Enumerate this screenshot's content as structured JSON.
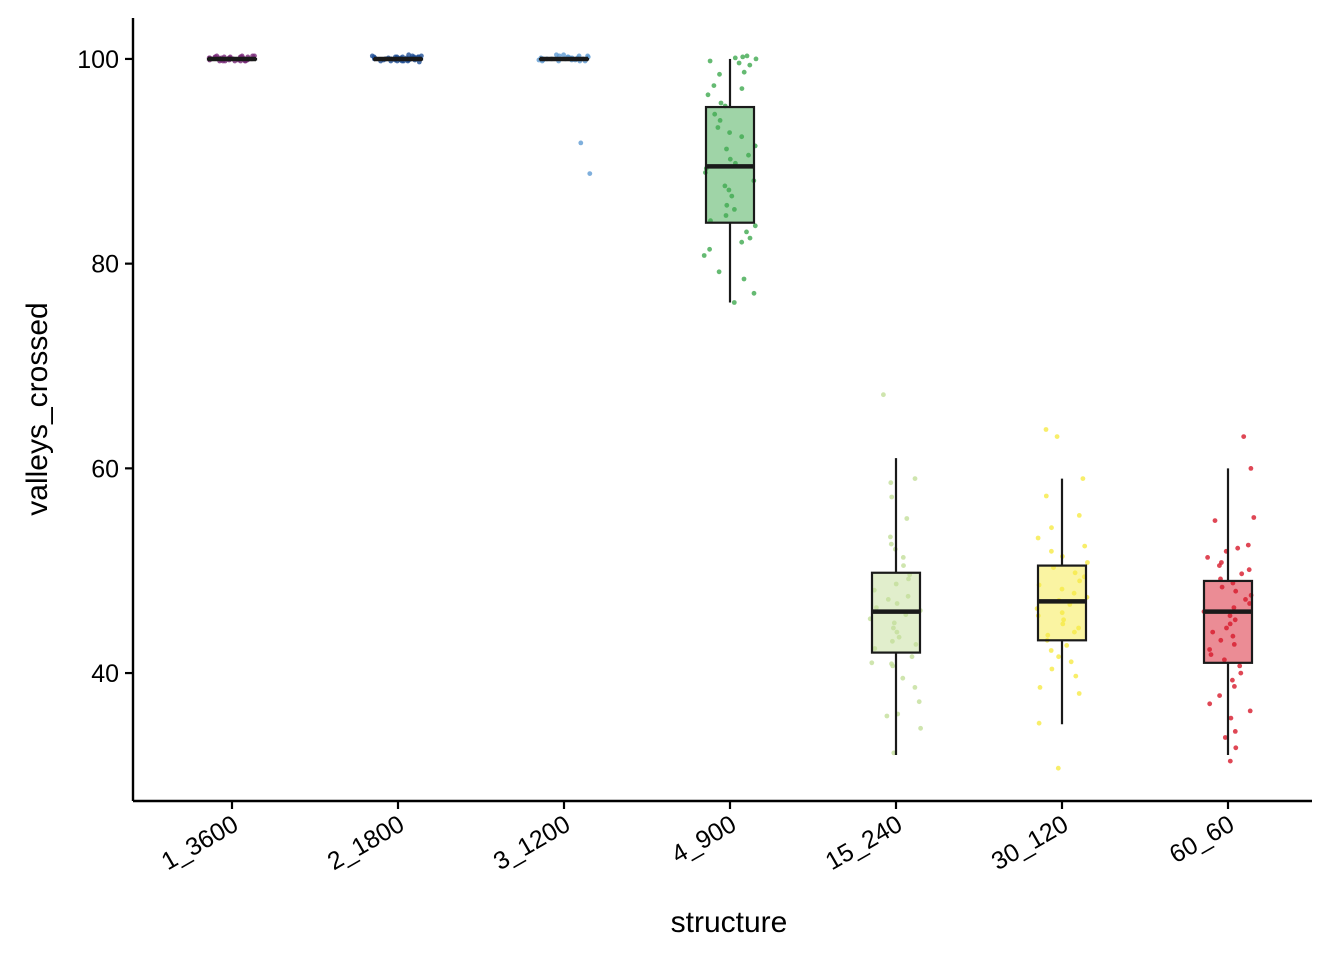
{
  "chart_data": {
    "type": "boxplot",
    "xlabel": "structure",
    "ylabel": "valleys_crossed",
    "ylim": [
      27.5,
      104
    ],
    "yticks": [
      40,
      60,
      80,
      100
    ],
    "categories": [
      "1_3600",
      "2_1800",
      "3_1200",
      "4_900",
      "15_240",
      "30_120",
      "60_60"
    ],
    "grid": false,
    "legend": "none",
    "boxes": [
      {
        "category": "1_3600",
        "color": "#7b2a7a",
        "min": 100,
        "q1": 100,
        "median": 100,
        "q3": 100,
        "max": 100,
        "outliers": []
      },
      {
        "category": "2_1800",
        "color": "#1f4f96",
        "min": 100,
        "q1": 100,
        "median": 100,
        "q3": 100,
        "max": 100,
        "outliers": []
      },
      {
        "category": "3_1200",
        "color": "#5f9bd3",
        "min": 100,
        "q1": 100,
        "median": 100,
        "q3": 100,
        "max": 100,
        "outliers": [
          91.8,
          88.8
        ]
      },
      {
        "category": "4_900",
        "color": "#3fa94f",
        "min": 76.2,
        "q1": 84,
        "median": 89.5,
        "q3": 95.3,
        "max": 100,
        "outliers": []
      },
      {
        "category": "15_240",
        "color": "#c3de9a",
        "min": 32,
        "q1": 42,
        "median": 46,
        "q3": 49.8,
        "max": 61,
        "outliers": [
          67.2
        ]
      },
      {
        "category": "30_120",
        "color": "#f6ea45",
        "min": 35,
        "q1": 43.2,
        "median": 47,
        "q3": 50.5,
        "max": 59,
        "outliers": [
          63.8,
          63.1,
          30.7
        ]
      },
      {
        "category": "60_60",
        "color": "#d7192b",
        "min": 32,
        "q1": 41,
        "median": 46,
        "q3": 49,
        "max": 60,
        "outliers": [
          63.1,
          31.4
        ]
      }
    ],
    "points": {
      "1_3600": [
        100.1,
        100.3,
        99.8,
        100,
        100.2,
        99.9,
        100.1,
        100.2,
        99.8,
        100,
        100.3,
        99.9,
        100.1,
        100,
        99.8,
        100.2,
        100.1,
        99.9,
        100,
        100.3,
        99.8,
        100.1,
        100.2,
        99.9,
        100,
        100.1,
        99.8,
        100.2,
        100,
        100.3,
        99.9,
        100.1,
        100,
        99.8,
        100.2,
        100.1,
        99.9,
        100,
        100.2,
        99.8
      ],
      "2_1800": [
        100.1,
        100.3,
        99.8,
        100,
        100.2,
        99.9,
        100.1,
        100.2,
        99.8,
        100,
        100.4,
        99.9,
        100.1,
        100,
        99.7,
        100.2,
        100.1,
        99.9,
        100,
        100.3,
        99.8,
        100.1,
        100.2,
        99.9,
        100,
        100.1,
        99.8,
        100.2,
        100,
        100.3,
        99.9,
        100.1,
        100,
        99.8,
        100.2,
        100.1,
        99.9,
        100,
        100.2,
        99.8
      ],
      "3_1200": [
        100.3,
        99.8,
        100.2,
        100,
        99.9,
        100.4,
        100,
        99.8,
        100.3,
        100.1,
        99.9,
        100,
        100.2,
        99.8,
        100.1,
        100,
        100.3,
        99.9,
        100.1,
        100.2,
        99.8,
        100,
        100.4,
        99.9,
        100.1,
        100
      ],
      "4_900": [
        100.3,
        100.1,
        100,
        99.8,
        100.2,
        99.4,
        99.6,
        98.7,
        98.5,
        97.4,
        97.1,
        96.5,
        95.7,
        95.4,
        94.6,
        94,
        93.3,
        92.8,
        92.4,
        91.5,
        91.2,
        90.6,
        90.2,
        89.8,
        89.3,
        88.9,
        88.1,
        87.6,
        87.2,
        86.6,
        85.7,
        85.3,
        84.7,
        84.2,
        83.7,
        83.1,
        82.5,
        82.1,
        81.4,
        80.8,
        79.2,
        78.5,
        77.1,
        76.2
      ],
      "15_240": [
        59,
        58.6,
        57.2,
        55.1,
        53.3,
        52.6,
        52.1,
        51.3,
        50.5,
        49.6,
        49.2,
        48.7,
        48.1,
        47.5,
        47.2,
        46.8,
        46.4,
        46.1,
        45.7,
        45.3,
        44.9,
        44.4,
        44,
        43.5,
        43.1,
        42.8,
        42.4,
        41.6,
        41,
        40.9,
        40.7,
        39.5,
        38.6,
        37.2,
        36,
        35.8,
        34.6,
        32.2
      ],
      "30_120": [
        59,
        57.3,
        55.4,
        54.2,
        53.2,
        52.4,
        51.9,
        51.4,
        50.8,
        50.3,
        49.8,
        49.4,
        49,
        48.6,
        48.2,
        47.8,
        47.4,
        47.1,
        46.7,
        46.3,
        45.9,
        45.6,
        45.2,
        44.8,
        44.4,
        44,
        43.7,
        43.2,
        42.7,
        42.2,
        41.6,
        41.1,
        40.4,
        39.7,
        38.6,
        38,
        35.1
      ],
      "60_60": [
        60,
        55.2,
        54.9,
        52.5,
        52.2,
        51.9,
        51.3,
        50.8,
        50.5,
        50.1,
        49.7,
        49.2,
        48.8,
        48.4,
        48,
        47.6,
        47.2,
        46.8,
        46.4,
        46,
        45.6,
        45.2,
        44.8,
        44.4,
        44,
        43.6,
        43.2,
        42.8,
        42.3,
        41.8,
        41.3,
        40.7,
        40,
        39.3,
        38.7,
        37.8,
        37,
        36.3,
        35.6,
        34.3,
        33.7,
        32.7
      ]
    }
  }
}
